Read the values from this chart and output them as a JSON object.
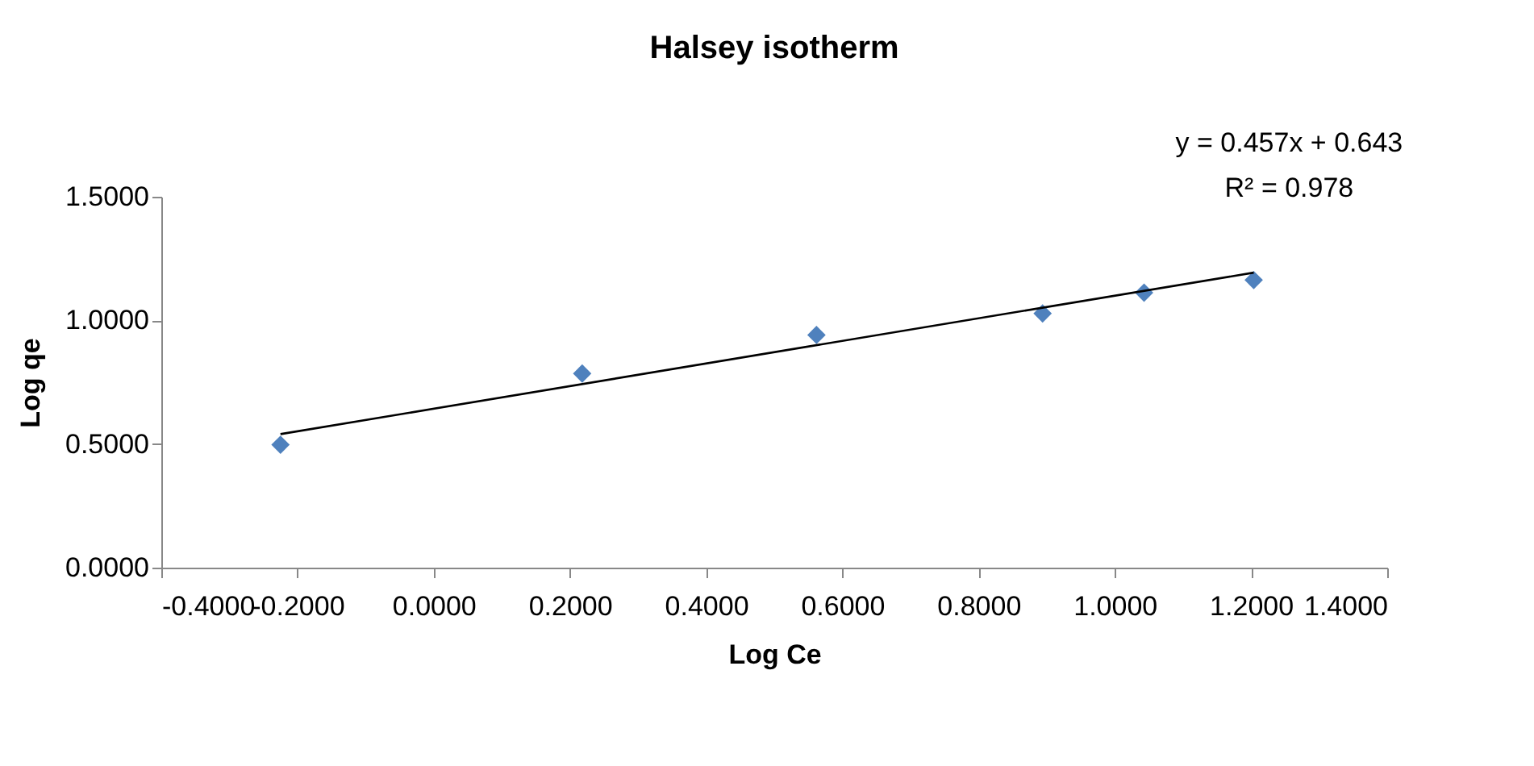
{
  "chart_data": {
    "type": "scatter",
    "title": "Halsey isotherm",
    "xlabel": "Log Ce",
    "ylabel": "Log qe",
    "series": [
      {
        "color": "#4f81bd",
        "marker": "diamond",
        "x": [
          -0.225,
          0.218,
          0.562,
          0.894,
          1.043,
          1.204
        ],
        "values": [
          0.497,
          0.785,
          0.941,
          1.028,
          1.112,
          1.163
        ]
      },
      {
        "type": "line",
        "color": "#000000",
        "marker": "none",
        "line_style": "solid",
        "x": [
          -0.225,
          1.204
        ],
        "values": [
          0.54,
          1.193
        ]
      }
    ],
    "xlim": [
      -0.4,
      1.4
    ],
    "xticks": [
      {
        "value": -0.4,
        "label": "-0.4000"
      },
      {
        "value": -0.2,
        "label": "-0.2000"
      },
      {
        "value": 0,
        "label": "0.0000"
      },
      {
        "value": 0.2,
        "label": "0.2000"
      },
      {
        "value": 0.4,
        "label": "0.4000"
      },
      {
        "value": 0.6,
        "label": "0.6000"
      },
      {
        "value": 0.8,
        "label": "0.8000"
      },
      {
        "value": 1.0,
        "label": "1.0000"
      },
      {
        "value": 1.2,
        "label": "1.2000"
      },
      {
        "value": 1.4,
        "label": "1.4000"
      }
    ],
    "ylim": [
      0,
      1.5
    ],
    "yticks": [
      {
        "value": 0,
        "label": "0.0000"
      },
      {
        "value": 0.5,
        "label": "0.5000"
      },
      {
        "value": 1.0,
        "label": "1.0000"
      },
      {
        "value": 1.5,
        "label": "1.5000"
      }
    ],
    "grid": false,
    "annotations": [
      "y = 0.457x + 0.643",
      "R² = 0.978"
    ]
  }
}
